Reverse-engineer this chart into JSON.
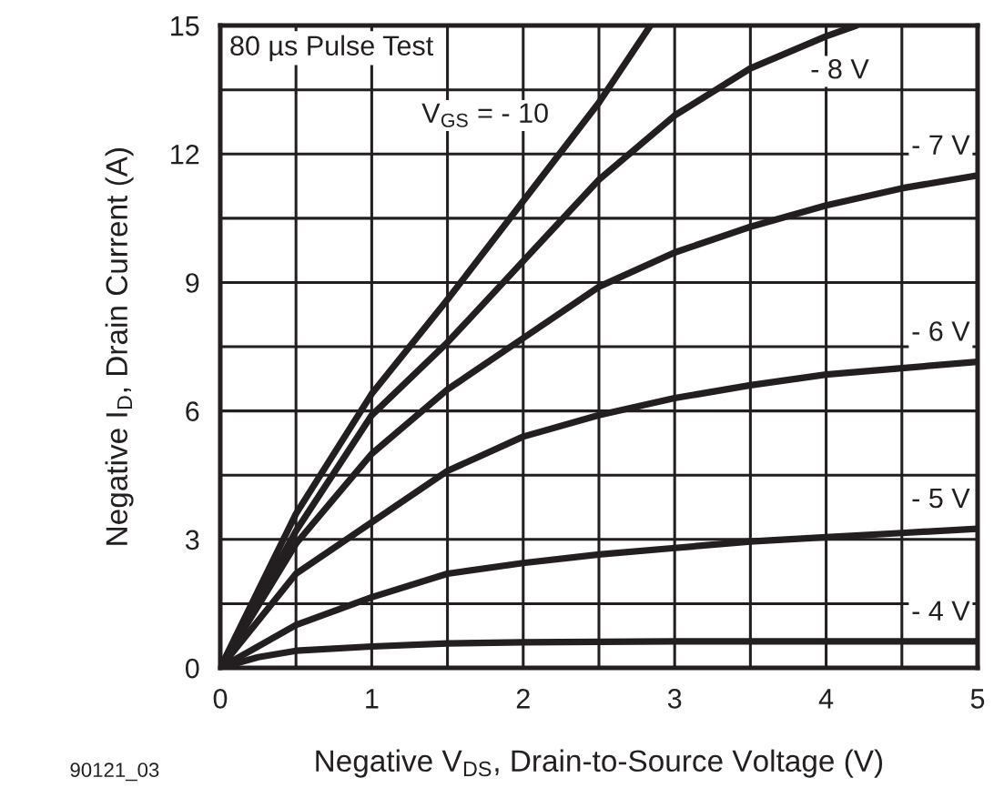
{
  "chart_data": {
    "type": "line",
    "xlabel": "Negative V$_{DS}$, Drain-to-Source Voltage (V)",
    "ylabel": "Negative I$_{D}$, Drain Current (A)",
    "xlim": [
      0,
      5
    ],
    "ylim": [
      0,
      15
    ],
    "xticks": [
      0,
      {
        "value": 0.5,
        "label": null
      },
      1,
      {
        "value": 1.5,
        "label": null
      },
      2,
      {
        "value": 2.5,
        "label": null
      },
      3,
      {
        "value": 3.5,
        "label": null
      },
      4,
      {
        "value": 4.5,
        "label": null
      },
      5
    ],
    "yticks": [
      0,
      {
        "value": 1.5,
        "label": null
      },
      3,
      {
        "value": 4.5,
        "label": null
      },
      6,
      {
        "value": 7.5,
        "label": null
      },
      9,
      {
        "value": 10.5,
        "label": null
      },
      12,
      {
        "value": 13.5,
        "label": null
      },
      15
    ],
    "grid": true,
    "legend": false,
    "marker": "none",
    "line_style": "solid",
    "series": [
      {
        "color": "#231f20",
        "x": [
          0,
          0.5,
          1,
          1.5,
          2,
          2.5,
          2.84
        ],
        "values": [
          0,
          3.6,
          6.4,
          8.6,
          10.9,
          13.2,
          15
        ]
      },
      {
        "name": "- 8 V",
        "color": "#231f20",
        "x": [
          0,
          0.5,
          1,
          1.5,
          2,
          2.5,
          3,
          3.5,
          4,
          4.2
        ],
        "values": [
          0,
          3.2,
          5.9,
          7.6,
          9.5,
          11.4,
          12.9,
          14.0,
          14.75,
          15
        ]
      },
      {
        "name": "- 7 V",
        "color": "#231f20",
        "x": [
          0,
          0.5,
          1,
          1.5,
          2,
          2.5,
          3,
          3.5,
          4,
          4.5,
          5
        ],
        "values": [
          0,
          2.9,
          5.0,
          6.5,
          7.7,
          8.9,
          9.7,
          10.3,
          10.8,
          11.2,
          11.5
        ]
      },
      {
        "name": "- 6 V",
        "color": "#231f20",
        "x": [
          0,
          0.5,
          1,
          1.5,
          2,
          2.5,
          3,
          3.5,
          4,
          4.5,
          5
        ],
        "values": [
          0,
          2.2,
          3.4,
          4.6,
          5.4,
          5.9,
          6.3,
          6.6,
          6.85,
          7.0,
          7.15
        ]
      },
      {
        "name": "- 5 V",
        "color": "#231f20",
        "x": [
          0,
          0.5,
          1,
          1.5,
          2,
          2.5,
          3,
          3.5,
          4,
          4.5,
          5
        ],
        "values": [
          0,
          1.0,
          1.65,
          2.2,
          2.45,
          2.65,
          2.8,
          2.95,
          3.05,
          3.15,
          3.25
        ]
      },
      {
        "name": "- 4 V",
        "color": "#231f20",
        "x": [
          0,
          0.25,
          0.5,
          1,
          1.5,
          2,
          3,
          4,
          5
        ],
        "values": [
          0,
          0.25,
          0.4,
          0.5,
          0.57,
          0.6,
          0.62,
          0.62,
          0.62
        ]
      }
    ],
    "annotations": [
      "80 µs Pulse Test",
      "V$_{GS}$ = - 10",
      "90121_03"
    ]
  }
}
